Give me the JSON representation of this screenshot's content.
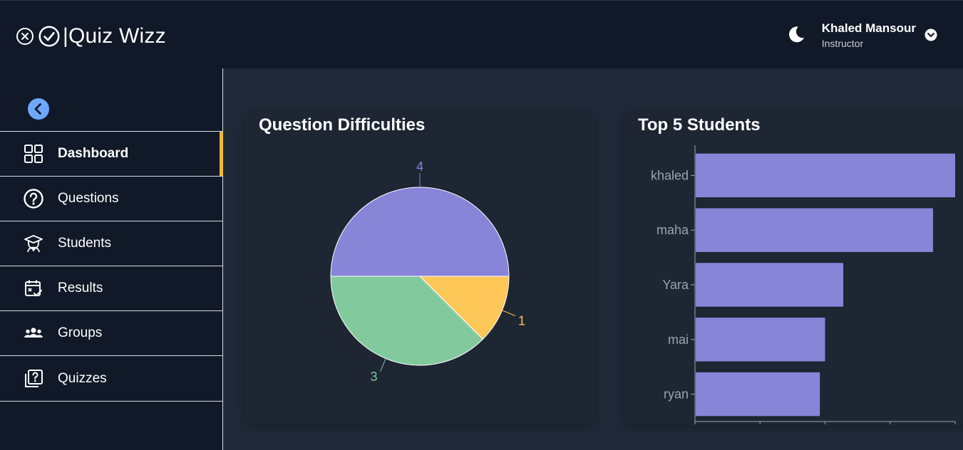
{
  "app": {
    "title": "|Quiz Wizz"
  },
  "header": {
    "user_name": "Khaled Mansour",
    "user_role": "Instructor"
  },
  "sidebar": {
    "items": [
      {
        "label": "Dashboard",
        "icon": "grid-icon",
        "active": true
      },
      {
        "label": "Questions",
        "icon": "question-circle-icon",
        "active": false
      },
      {
        "label": "Students",
        "icon": "graduate-icon",
        "active": false
      },
      {
        "label": "Results",
        "icon": "calendar-check-icon",
        "active": false
      },
      {
        "label": "Groups",
        "icon": "users-icon",
        "active": false
      },
      {
        "label": "Quizzes",
        "icon": "quiz-copy-icon",
        "active": false
      }
    ]
  },
  "colors": {
    "purple": "#8884d8",
    "green": "#82ca9d",
    "yellow": "#ffc658",
    "accent": "#f7b733",
    "collapse": "#6ea8fe"
  },
  "chart_data": [
    {
      "type": "pie",
      "title": "Question Difficulties",
      "slices": [
        {
          "value": 4,
          "label": "4",
          "color": "#8884d8"
        },
        {
          "value": 1,
          "label": "1",
          "color": "#ffc658"
        },
        {
          "value": 3,
          "label": "3",
          "color": "#82ca9d"
        }
      ]
    },
    {
      "type": "bar",
      "orientation": "horizontal",
      "title": "Top 5 Students",
      "categories": [
        "khaled",
        "maha",
        "Yara",
        "mai",
        "ryan"
      ],
      "values": [
        20,
        18.3,
        11.4,
        10,
        9.6
      ],
      "xlim": [
        0,
        20
      ],
      "xticks": [
        "0",
        "5",
        "10",
        "15",
        "20"
      ],
      "color": "#8884d8"
    }
  ]
}
